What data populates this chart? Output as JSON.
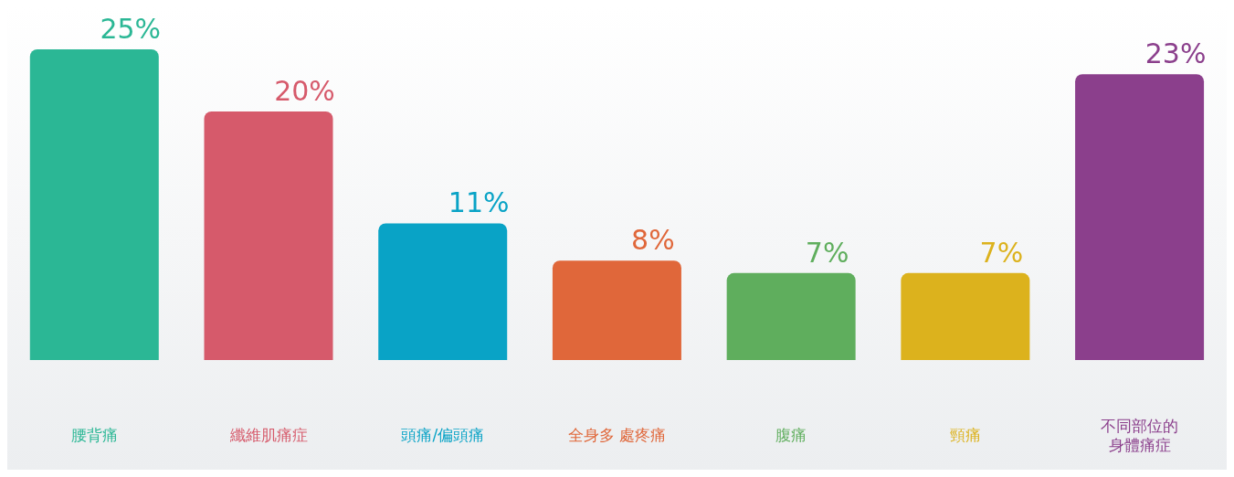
{
  "chart_data": {
    "type": "bar",
    "categories": [
      "腰背痛",
      "纖維肌痛症",
      "頭痛/偏頭痛",
      "全身多 處疼痛",
      "腹痛",
      "頸痛",
      "不同部位的身體痛症"
    ],
    "values": [
      25,
      20,
      11,
      8,
      7,
      7,
      23
    ],
    "colors": [
      "#2bb795",
      "#d65a6b",
      "#09a3c6",
      "#e0673a",
      "#5fae5d",
      "#dcb21d",
      "#8b3f8c"
    ],
    "value_labels": [
      "25%",
      "20%",
      "11%",
      "8%",
      "7%",
      "7%",
      "23%"
    ],
    "grid": false,
    "legend": false
  }
}
